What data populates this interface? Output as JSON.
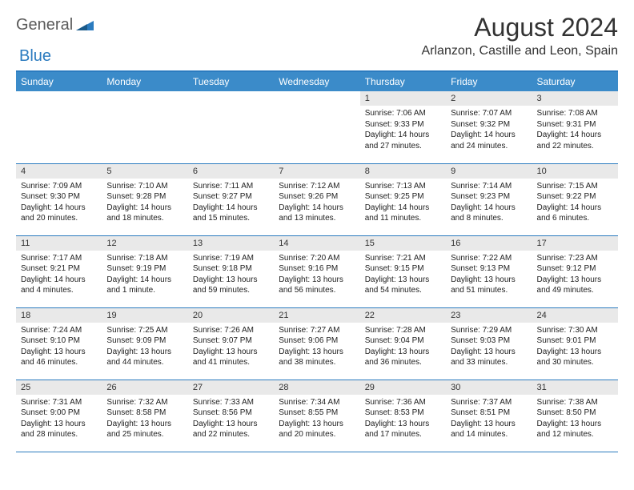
{
  "logo": {
    "general": "General",
    "blue": "Blue"
  },
  "title": "August 2024",
  "location": "Arlanzon, Castille and Leon, Spain",
  "colors": {
    "header_bg": "#3b8bc9",
    "border": "#2b7bbf",
    "daynum_bg": "#e9e9e9"
  },
  "weekdays": [
    "Sunday",
    "Monday",
    "Tuesday",
    "Wednesday",
    "Thursday",
    "Friday",
    "Saturday"
  ],
  "weeks": [
    [
      null,
      null,
      null,
      null,
      {
        "n": "1",
        "sr": "7:06 AM",
        "ss": "9:33 PM",
        "dl": "14 hours and 27 minutes."
      },
      {
        "n": "2",
        "sr": "7:07 AM",
        "ss": "9:32 PM",
        "dl": "14 hours and 24 minutes."
      },
      {
        "n": "3",
        "sr": "7:08 AM",
        "ss": "9:31 PM",
        "dl": "14 hours and 22 minutes."
      }
    ],
    [
      {
        "n": "4",
        "sr": "7:09 AM",
        "ss": "9:30 PM",
        "dl": "14 hours and 20 minutes."
      },
      {
        "n": "5",
        "sr": "7:10 AM",
        "ss": "9:28 PM",
        "dl": "14 hours and 18 minutes."
      },
      {
        "n": "6",
        "sr": "7:11 AM",
        "ss": "9:27 PM",
        "dl": "14 hours and 15 minutes."
      },
      {
        "n": "7",
        "sr": "7:12 AM",
        "ss": "9:26 PM",
        "dl": "14 hours and 13 minutes."
      },
      {
        "n": "8",
        "sr": "7:13 AM",
        "ss": "9:25 PM",
        "dl": "14 hours and 11 minutes."
      },
      {
        "n": "9",
        "sr": "7:14 AM",
        "ss": "9:23 PM",
        "dl": "14 hours and 8 minutes."
      },
      {
        "n": "10",
        "sr": "7:15 AM",
        "ss": "9:22 PM",
        "dl": "14 hours and 6 minutes."
      }
    ],
    [
      {
        "n": "11",
        "sr": "7:17 AM",
        "ss": "9:21 PM",
        "dl": "14 hours and 4 minutes."
      },
      {
        "n": "12",
        "sr": "7:18 AM",
        "ss": "9:19 PM",
        "dl": "14 hours and 1 minute."
      },
      {
        "n": "13",
        "sr": "7:19 AM",
        "ss": "9:18 PM",
        "dl": "13 hours and 59 minutes."
      },
      {
        "n": "14",
        "sr": "7:20 AM",
        "ss": "9:16 PM",
        "dl": "13 hours and 56 minutes."
      },
      {
        "n": "15",
        "sr": "7:21 AM",
        "ss": "9:15 PM",
        "dl": "13 hours and 54 minutes."
      },
      {
        "n": "16",
        "sr": "7:22 AM",
        "ss": "9:13 PM",
        "dl": "13 hours and 51 minutes."
      },
      {
        "n": "17",
        "sr": "7:23 AM",
        "ss": "9:12 PM",
        "dl": "13 hours and 49 minutes."
      }
    ],
    [
      {
        "n": "18",
        "sr": "7:24 AM",
        "ss": "9:10 PM",
        "dl": "13 hours and 46 minutes."
      },
      {
        "n": "19",
        "sr": "7:25 AM",
        "ss": "9:09 PM",
        "dl": "13 hours and 44 minutes."
      },
      {
        "n": "20",
        "sr": "7:26 AM",
        "ss": "9:07 PM",
        "dl": "13 hours and 41 minutes."
      },
      {
        "n": "21",
        "sr": "7:27 AM",
        "ss": "9:06 PM",
        "dl": "13 hours and 38 minutes."
      },
      {
        "n": "22",
        "sr": "7:28 AM",
        "ss": "9:04 PM",
        "dl": "13 hours and 36 minutes."
      },
      {
        "n": "23",
        "sr": "7:29 AM",
        "ss": "9:03 PM",
        "dl": "13 hours and 33 minutes."
      },
      {
        "n": "24",
        "sr": "7:30 AM",
        "ss": "9:01 PM",
        "dl": "13 hours and 30 minutes."
      }
    ],
    [
      {
        "n": "25",
        "sr": "7:31 AM",
        "ss": "9:00 PM",
        "dl": "13 hours and 28 minutes."
      },
      {
        "n": "26",
        "sr": "7:32 AM",
        "ss": "8:58 PM",
        "dl": "13 hours and 25 minutes."
      },
      {
        "n": "27",
        "sr": "7:33 AM",
        "ss": "8:56 PM",
        "dl": "13 hours and 22 minutes."
      },
      {
        "n": "28",
        "sr": "7:34 AM",
        "ss": "8:55 PM",
        "dl": "13 hours and 20 minutes."
      },
      {
        "n": "29",
        "sr": "7:36 AM",
        "ss": "8:53 PM",
        "dl": "13 hours and 17 minutes."
      },
      {
        "n": "30",
        "sr": "7:37 AM",
        "ss": "8:51 PM",
        "dl": "13 hours and 14 minutes."
      },
      {
        "n": "31",
        "sr": "7:38 AM",
        "ss": "8:50 PM",
        "dl": "13 hours and 12 minutes."
      }
    ]
  ],
  "labels": {
    "sunrise": "Sunrise:",
    "sunset": "Sunset:",
    "daylight": "Daylight:"
  }
}
